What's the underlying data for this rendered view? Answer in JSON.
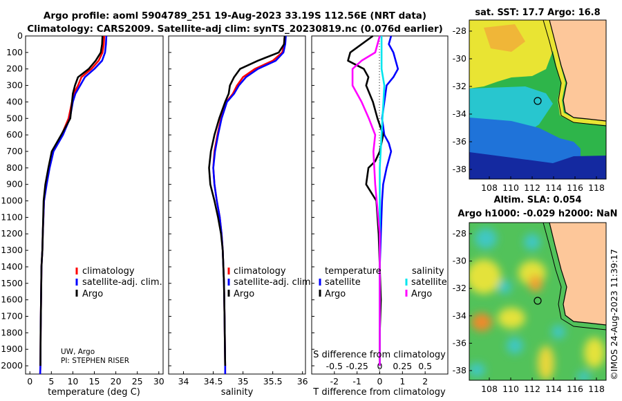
{
  "titles": {
    "line1": "Argo profile: aoml 5904789_251 19-Aug-2023 33.19S 112.56E (NRT data)",
    "line2": "Climatology: CARS2009. Satellite-adj clim: synTS_20230819.nc (0.076d earlier)"
  },
  "credits": {
    "owner": "UW, Argo",
    "pi": "PI: STEPHEN RISER"
  },
  "stamp": "©IMOS 24-Aug-2023 11:39:17",
  "colors": {
    "climatology": "#ff0000",
    "satellite": "#0000ff",
    "argo": "#000000",
    "sat_cyan": "#00e5ee",
    "argo_magenta": "#ff00ff",
    "land": "#fdc79a"
  },
  "legend1": {
    "climatology": "climatology",
    "satellite": "satellite-adj. clim.",
    "argo": "Argo"
  },
  "legend3": {
    "head_t": "temperature",
    "head_s": "salinity",
    "satellite": "satellite",
    "argo": "Argo"
  },
  "maps": {
    "sst": {
      "title": "sat. SST: 17.7 Argo: 16.8",
      "lat_ticks": [
        "-28",
        "-30",
        "-32",
        "-34",
        "-36",
        "-38"
      ],
      "lon_ticks": [
        "108",
        "110",
        "112",
        "114",
        "116",
        "118"
      ]
    },
    "sla": {
      "title1": "Altim. SLA: 0.054",
      "title2": "Argo h1000: -0.029 h2000: NaN",
      "lat_ticks": [
        "-28",
        "-30",
        "-32",
        "-34",
        "-36",
        "-38"
      ],
      "lon_ticks": [
        "108",
        "110",
        "112",
        "114",
        "116",
        "118"
      ]
    }
  },
  "chart_data": [
    {
      "type": "line",
      "name": "temperature",
      "xlabel": "temperature (deg C)",
      "ylabel": "",
      "xlim": [
        -1,
        31
      ],
      "ylim": [
        2050,
        0
      ],
      "xticks": [
        0,
        5,
        10,
        15,
        20,
        25,
        30
      ],
      "xticklabels": [
        "0",
        "5",
        "10",
        "15",
        "20",
        "25",
        "30"
      ],
      "yticks": [
        0,
        100,
        200,
        300,
        400,
        500,
        600,
        700,
        800,
        900,
        1000,
        1100,
        1200,
        1300,
        1400,
        1500,
        1600,
        1700,
        1800,
        1900,
        2000
      ],
      "yticklabels": [
        "0",
        "100",
        "200",
        "300",
        "400",
        "500",
        "600",
        "700",
        "800",
        "900",
        "1000",
        "1100",
        "1200",
        "1300",
        "1400",
        "1500",
        "1600",
        "1700",
        "1800",
        "1900",
        "2000"
      ],
      "series": [
        {
          "name": "climatology",
          "x": [
            17.3,
            17.2,
            16.9,
            16.0,
            14.3,
            12.0,
            11.2,
            10.2,
            9.8,
            9.0,
            7.4,
            5.3,
            4.5,
            3.8,
            3.3,
            3.0,
            2.9,
            2.7,
            2.6,
            2.5,
            2.45,
            2.4
          ],
          "y": [
            0,
            50,
            100,
            150,
            200,
            250,
            300,
            350,
            400,
            500,
            600,
            700,
            800,
            900,
            1000,
            1200,
            1300,
            1400,
            1600,
            1800,
            2000,
            2050
          ]
        },
        {
          "name": "satellite-adj. clim.",
          "x": [
            17.8,
            17.7,
            17.5,
            16.8,
            15.0,
            12.8,
            11.7,
            10.6,
            10.0,
            9.3,
            7.7,
            5.5,
            4.6,
            3.9,
            3.3,
            3.0,
            2.9,
            2.7,
            2.6,
            2.5,
            2.45,
            2.4
          ],
          "y": [
            0,
            50,
            100,
            150,
            200,
            250,
            300,
            350,
            400,
            500,
            600,
            700,
            800,
            900,
            1000,
            1200,
            1300,
            1400,
            1600,
            1800,
            2000,
            2050
          ]
        },
        {
          "name": "Argo",
          "x": [
            16.9,
            16.8,
            16.5,
            15.3,
            13.7,
            11.2,
            10.5,
            10.0,
            9.8,
            9.4,
            7.3,
            5.1,
            4.3,
            3.6,
            3.2,
            3.0,
            2.9,
            2.7,
            2.6,
            2.5,
            2.45
          ],
          "y": [
            0,
            50,
            100,
            150,
            200,
            250,
            300,
            350,
            400,
            500,
            600,
            700,
            800,
            900,
            1000,
            1200,
            1300,
            1400,
            1600,
            1800,
            2000
          ]
        }
      ]
    },
    {
      "type": "line",
      "name": "salinity",
      "xlabel": "salinity",
      "ylabel": "",
      "xlim": [
        33.75,
        36.05
      ],
      "ylim": [
        2050,
        0
      ],
      "xticks": [
        34,
        34.5,
        35,
        35.5,
        36
      ],
      "xticklabels": [
        "34",
        "34.5",
        "35",
        "35.5",
        "36"
      ],
      "series": [
        {
          "name": "climatology",
          "x": [
            35.7,
            35.69,
            35.66,
            35.5,
            35.2,
            35.0,
            34.9,
            34.83,
            34.72,
            34.63,
            34.57,
            34.52,
            34.5,
            34.52,
            34.56,
            34.61,
            34.64,
            34.66,
            34.68,
            34.69,
            34.7,
            34.7
          ],
          "y": [
            0,
            50,
            100,
            150,
            200,
            250,
            300,
            350,
            400,
            500,
            600,
            700,
            800,
            900,
            1000,
            1100,
            1200,
            1300,
            1500,
            1700,
            2000,
            2050
          ]
        },
        {
          "name": "satellite-adj. clim.",
          "x": [
            35.72,
            35.71,
            35.68,
            35.55,
            35.25,
            35.05,
            34.93,
            34.85,
            34.73,
            34.64,
            34.58,
            34.53,
            34.5,
            34.52,
            34.56,
            34.61,
            34.64,
            34.66,
            34.68,
            34.69,
            34.7,
            34.7
          ],
          "y": [
            0,
            50,
            100,
            150,
            200,
            250,
            300,
            350,
            400,
            500,
            600,
            700,
            800,
            900,
            1000,
            1100,
            1200,
            1300,
            1500,
            1700,
            2000,
            2050
          ]
        },
        {
          "name": "Argo",
          "x": [
            35.7,
            35.69,
            35.6,
            35.25,
            34.95,
            34.85,
            34.78,
            34.76,
            34.7,
            34.6,
            34.52,
            34.46,
            34.43,
            34.45,
            34.52,
            34.58,
            34.63,
            34.66,
            34.68,
            34.69,
            34.7
          ],
          "y": [
            0,
            50,
            100,
            150,
            200,
            250,
            300,
            350,
            400,
            500,
            600,
            700,
            800,
            900,
            1000,
            1100,
            1200,
            1300,
            1500,
            1700,
            2000
          ]
        }
      ]
    },
    {
      "type": "line",
      "name": "difference from climatology",
      "xlabel": "T difference from climatology",
      "ylabel": "",
      "toplabel": "S difference from climatology",
      "xlim": [
        -3,
        3
      ],
      "ylim": [
        2050,
        0
      ],
      "xticks": [
        -2,
        -1,
        0,
        1,
        2
      ],
      "xticklabels": [
        "-2",
        "-1",
        "0",
        "1",
        "2"
      ],
      "sticks": [
        -0.5,
        -0.25,
        0,
        0.25,
        0.5
      ],
      "sticklabels": [
        "-0.5",
        "-0.25",
        "0",
        "0.25",
        "0.5"
      ],
      "series": [
        {
          "name": "temperature satellite",
          "x": [
            0.5,
            0.4,
            0.6,
            0.7,
            0.8,
            0.6,
            0.3,
            0.2,
            0.1,
            0.2,
            0.4,
            0.5,
            0.3,
            0.15,
            0.1,
            0.05,
            0.0,
            0.0,
            0.0,
            0.0
          ],
          "y": [
            0,
            50,
            100,
            150,
            200,
            250,
            300,
            400,
            500,
            600,
            650,
            700,
            800,
            900,
            1000,
            1200,
            1400,
            1600,
            1800,
            2000
          ]
        },
        {
          "name": "temperature Argo",
          "x": [
            -0.3,
            -0.8,
            -1.3,
            -1.4,
            -0.7,
            -0.5,
            -0.6,
            -0.3,
            -0.1,
            0.15,
            0.0,
            -0.2,
            -0.5,
            -0.6,
            -0.15,
            -0.05,
            0.0,
            0.05,
            0.0,
            0.0
          ],
          "y": [
            0,
            50,
            100,
            150,
            200,
            250,
            300,
            400,
            500,
            600,
            700,
            760,
            800,
            900,
            1000,
            1200,
            1400,
            1600,
            1800,
            2000
          ]
        },
        {
          "name": "salinity satellite",
          "x": [
            0.02,
            0.02,
            0.02,
            0.05,
            0.04,
            0.03,
            0.02,
            0.0,
            0.0,
            0.0,
            0.0,
            0.0
          ],
          "y": [
            0,
            100,
            200,
            300,
            400,
            500,
            600,
            800,
            1000,
            1400,
            1800,
            2000
          ]
        },
        {
          "name": "salinity Argo",
          "x": [
            0.0,
            -0.05,
            -0.2,
            -0.3,
            -0.3,
            -0.2,
            -0.12,
            -0.05,
            -0.07,
            -0.05,
            0.0,
            0.0,
            0.0
          ],
          "y": [
            0,
            100,
            150,
            200,
            300,
            400,
            500,
            600,
            700,
            900,
            1200,
            1600,
            2000
          ]
        }
      ]
    }
  ]
}
